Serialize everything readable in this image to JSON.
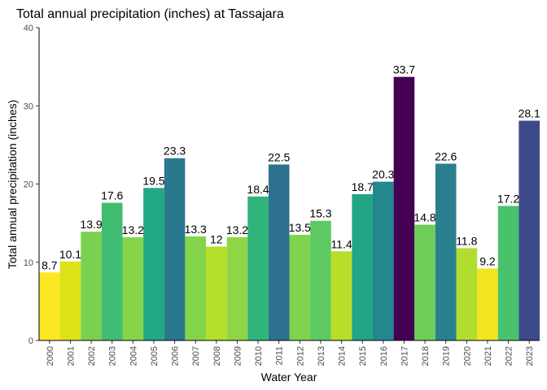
{
  "chart_data": {
    "type": "bar",
    "title": "Total annual precipitation (inches) at Tassajara",
    "xlabel": "Water Year",
    "ylabel": "Total annual precipitation (inches)",
    "ylim": [
      0,
      40
    ],
    "yticks": [
      "0",
      "10",
      "20",
      "30",
      "40"
    ],
    "grid": false,
    "legend": "none",
    "categories": [
      "2000",
      "2001",
      "2002",
      "2003",
      "2004",
      "2005",
      "2006",
      "2007",
      "2008",
      "2009",
      "2010",
      "2011",
      "2012",
      "2013",
      "2014",
      "2015",
      "2016",
      "2017",
      "2018",
      "2019",
      "2020",
      "2021",
      "2022",
      "2023"
    ],
    "values": [
      8.7,
      10.1,
      13.9,
      17.6,
      13.2,
      19.5,
      23.3,
      13.3,
      12,
      13.2,
      18.4,
      22.5,
      13.5,
      15.3,
      11.4,
      18.7,
      20.3,
      33.7,
      14.8,
      22.6,
      11.8,
      9.2,
      17.2,
      28.1
    ],
    "labels": [
      "8.7",
      "10.1",
      "13.9",
      "17.6",
      "13.2",
      "19.5",
      "23.3",
      "13.3",
      "12",
      "13.2",
      "18.4",
      "22.5",
      "13.5",
      "15.3",
      "11.4",
      "18.7",
      "20.3",
      "33.7",
      "14.8",
      "22.6",
      "11.8",
      "9.2",
      "17.2",
      "28.1"
    ],
    "colors": [
      "#fde725",
      "#dce319",
      "#7ad151",
      "#40bd72",
      "#86d549",
      "#22a884",
      "#2a788e",
      "#84d44b",
      "#b5de2b",
      "#8ed645",
      "#2fb47c",
      "#2c728e",
      "#7fd34e",
      "#5ec962",
      "#b8de29",
      "#21a585",
      "#23888e",
      "#440154",
      "#6ece58",
      "#2a7f8e",
      "#b0dd2f",
      "#f1e51d",
      "#4ac16d",
      "#3e4989"
    ]
  }
}
